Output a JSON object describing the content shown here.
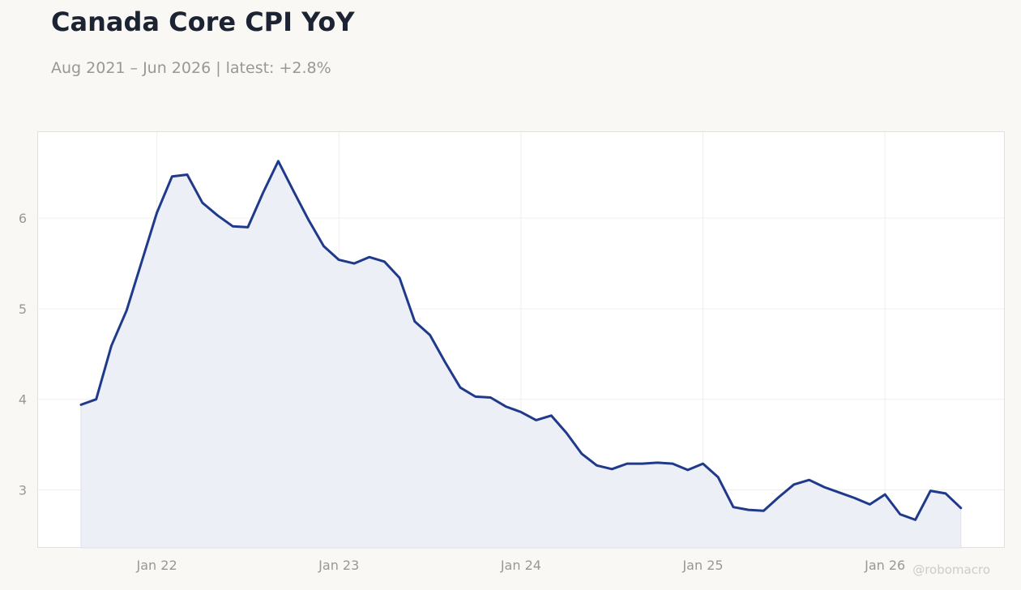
{
  "header": {
    "title": "Canada Core CPI YoY",
    "subtitle": "Aug 2021 – Jun 2026 | latest: +2.8%"
  },
  "watermark": "@robomacro",
  "colors": {
    "line": "#1f3a8a",
    "area": "#eceef5",
    "background": "#f9f8f5",
    "plot_background": "#ffffff"
  },
  "chart_data": {
    "type": "area",
    "x_start": "2021-08",
    "x_end": "2026-06",
    "x_frequency": "monthly",
    "values": [
      3.94,
      4.0,
      4.59,
      4.98,
      5.52,
      6.06,
      6.46,
      6.48,
      6.17,
      6.03,
      5.91,
      5.9,
      6.28,
      6.63,
      6.3,
      5.98,
      5.69,
      5.54,
      5.5,
      5.57,
      5.52,
      5.34,
      4.86,
      4.71,
      4.41,
      4.13,
      4.03,
      4.02,
      3.92,
      3.86,
      3.77,
      3.82,
      3.63,
      3.4,
      3.27,
      3.23,
      3.29,
      3.29,
      3.3,
      3.29,
      3.22,
      3.29,
      3.14,
      2.81,
      2.78,
      2.77,
      2.92,
      3.06,
      3.11,
      3.03,
      2.97,
      2.91,
      2.84,
      2.95,
      2.73,
      2.67,
      2.99,
      2.96,
      2.8
    ],
    "xticks": [
      "Jan 22",
      "Jan 23",
      "Jan 24",
      "Jan 25",
      "Jan 26"
    ],
    "xtick_dates": [
      "2022-01",
      "2023-01",
      "2024-01",
      "2025-01",
      "2026-01"
    ],
    "yticks": [
      3,
      4,
      5,
      6
    ],
    "ylim": [
      2.36,
      6.95
    ],
    "xlabel": "",
    "ylabel": "",
    "grid": true,
    "legend": "none"
  }
}
